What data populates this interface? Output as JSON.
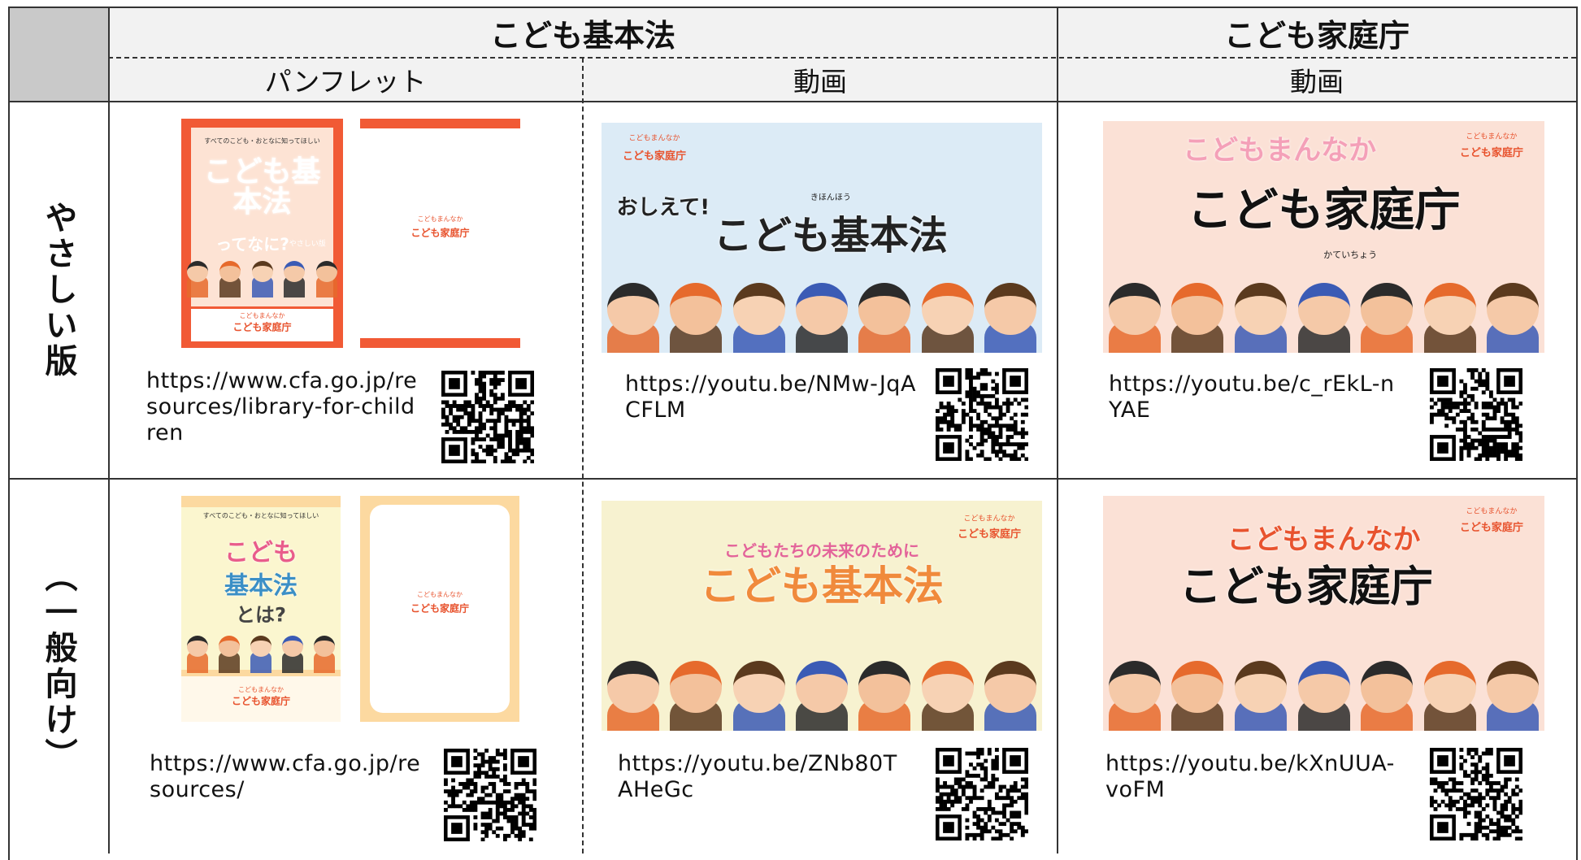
{
  "header": {
    "groups": [
      "こども基本法",
      "こども家庭庁"
    ],
    "subheaders": [
      "パンフレット",
      "動画",
      "動画"
    ]
  },
  "rows": [
    {
      "label": "やさしい版",
      "cells": [
        {
          "thumb": [
            "すべてのこども・おとなに知ってほしい",
            "こども基本法",
            "ってなに?",
            "やさしい版",
            "こどもまんなか",
            "こども家庭庁",
            "こどもまんなか",
            "こども家庭庁"
          ],
          "url": "https://www.cfa.go.jp/resources/library-for-children"
        },
        {
          "thumb": [
            "こどもまんなか",
            "こども家庭庁",
            "おしえて!",
            "きほんほう",
            "こども基本法"
          ],
          "url": "https://youtu.be/NMw-JqACFLM"
        },
        {
          "thumb": [
            "こどもまんなか",
            "こども家庭庁",
            "こどもまんなか",
            "こども家庭庁",
            "かていちょう"
          ],
          "url": "https://youtu.be/c_rEkL-nYAE"
        }
      ]
    },
    {
      "label": "（一般向け）",
      "cells": [
        {
          "thumb": [
            "すべてのこども・おとなに知ってほしい",
            "こども",
            "基本法",
            "とは?",
            "こどもまんなか",
            "こども家庭庁",
            "こどもまんなか",
            "こども家庭庁"
          ],
          "url": "https://www.cfa.go.jp/resources/"
        },
        {
          "thumb": [
            "こどもまんなか",
            "こども家庭庁",
            "こどもたちの未来のために",
            "こども基本法"
          ],
          "url": "https://youtu.be/ZNb80TAHeGc"
        },
        {
          "thumb": [
            "こどもまんなか",
            "こども家庭庁",
            "こどもまんなか",
            "こども家庭庁"
          ],
          "url": "https://youtu.be/kXnUUA-voFM"
        }
      ]
    }
  ]
}
